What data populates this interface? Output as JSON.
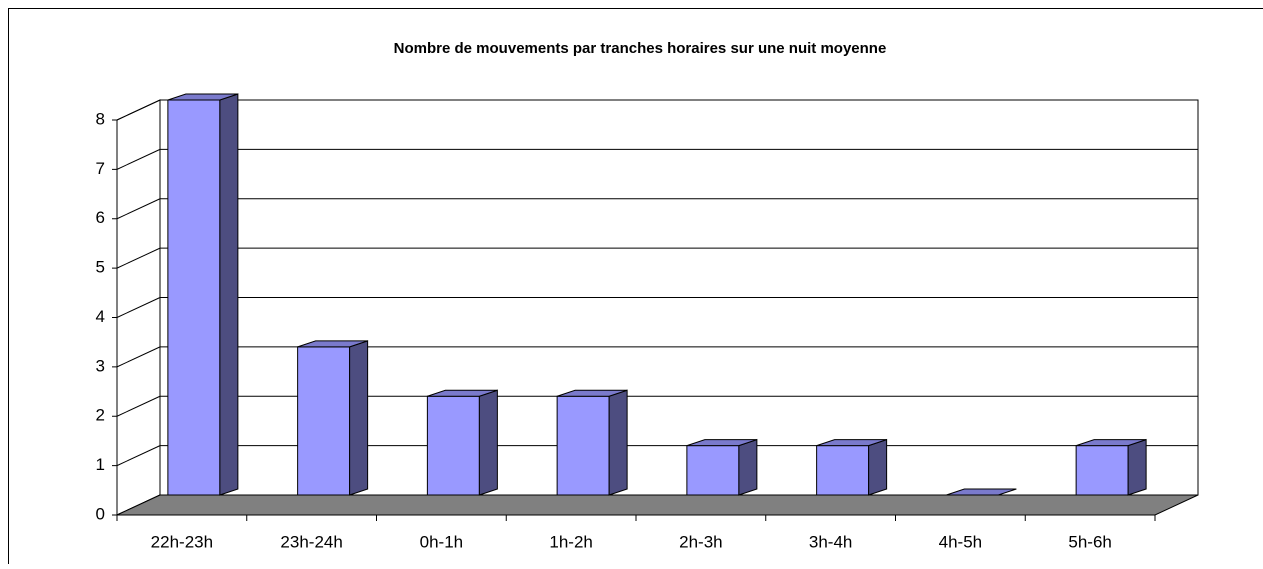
{
  "chart_data": {
    "type": "bar3d",
    "title": "Nombre de mouvements par tranches horaires sur une nuit moyenne",
    "categories": [
      "22h-23h",
      "23h-24h",
      "0h-1h",
      "1h-2h",
      "2h-3h",
      "3h-4h",
      "4h-5h",
      "5h-6h"
    ],
    "values": [
      8,
      3,
      2,
      2,
      1,
      1,
      0,
      1
    ],
    "color": "#9999ff",
    "ylim": [
      0,
      8
    ],
    "yticks": [
      0,
      1,
      2,
      3,
      4,
      5,
      6,
      7,
      8
    ],
    "grid": true
  }
}
